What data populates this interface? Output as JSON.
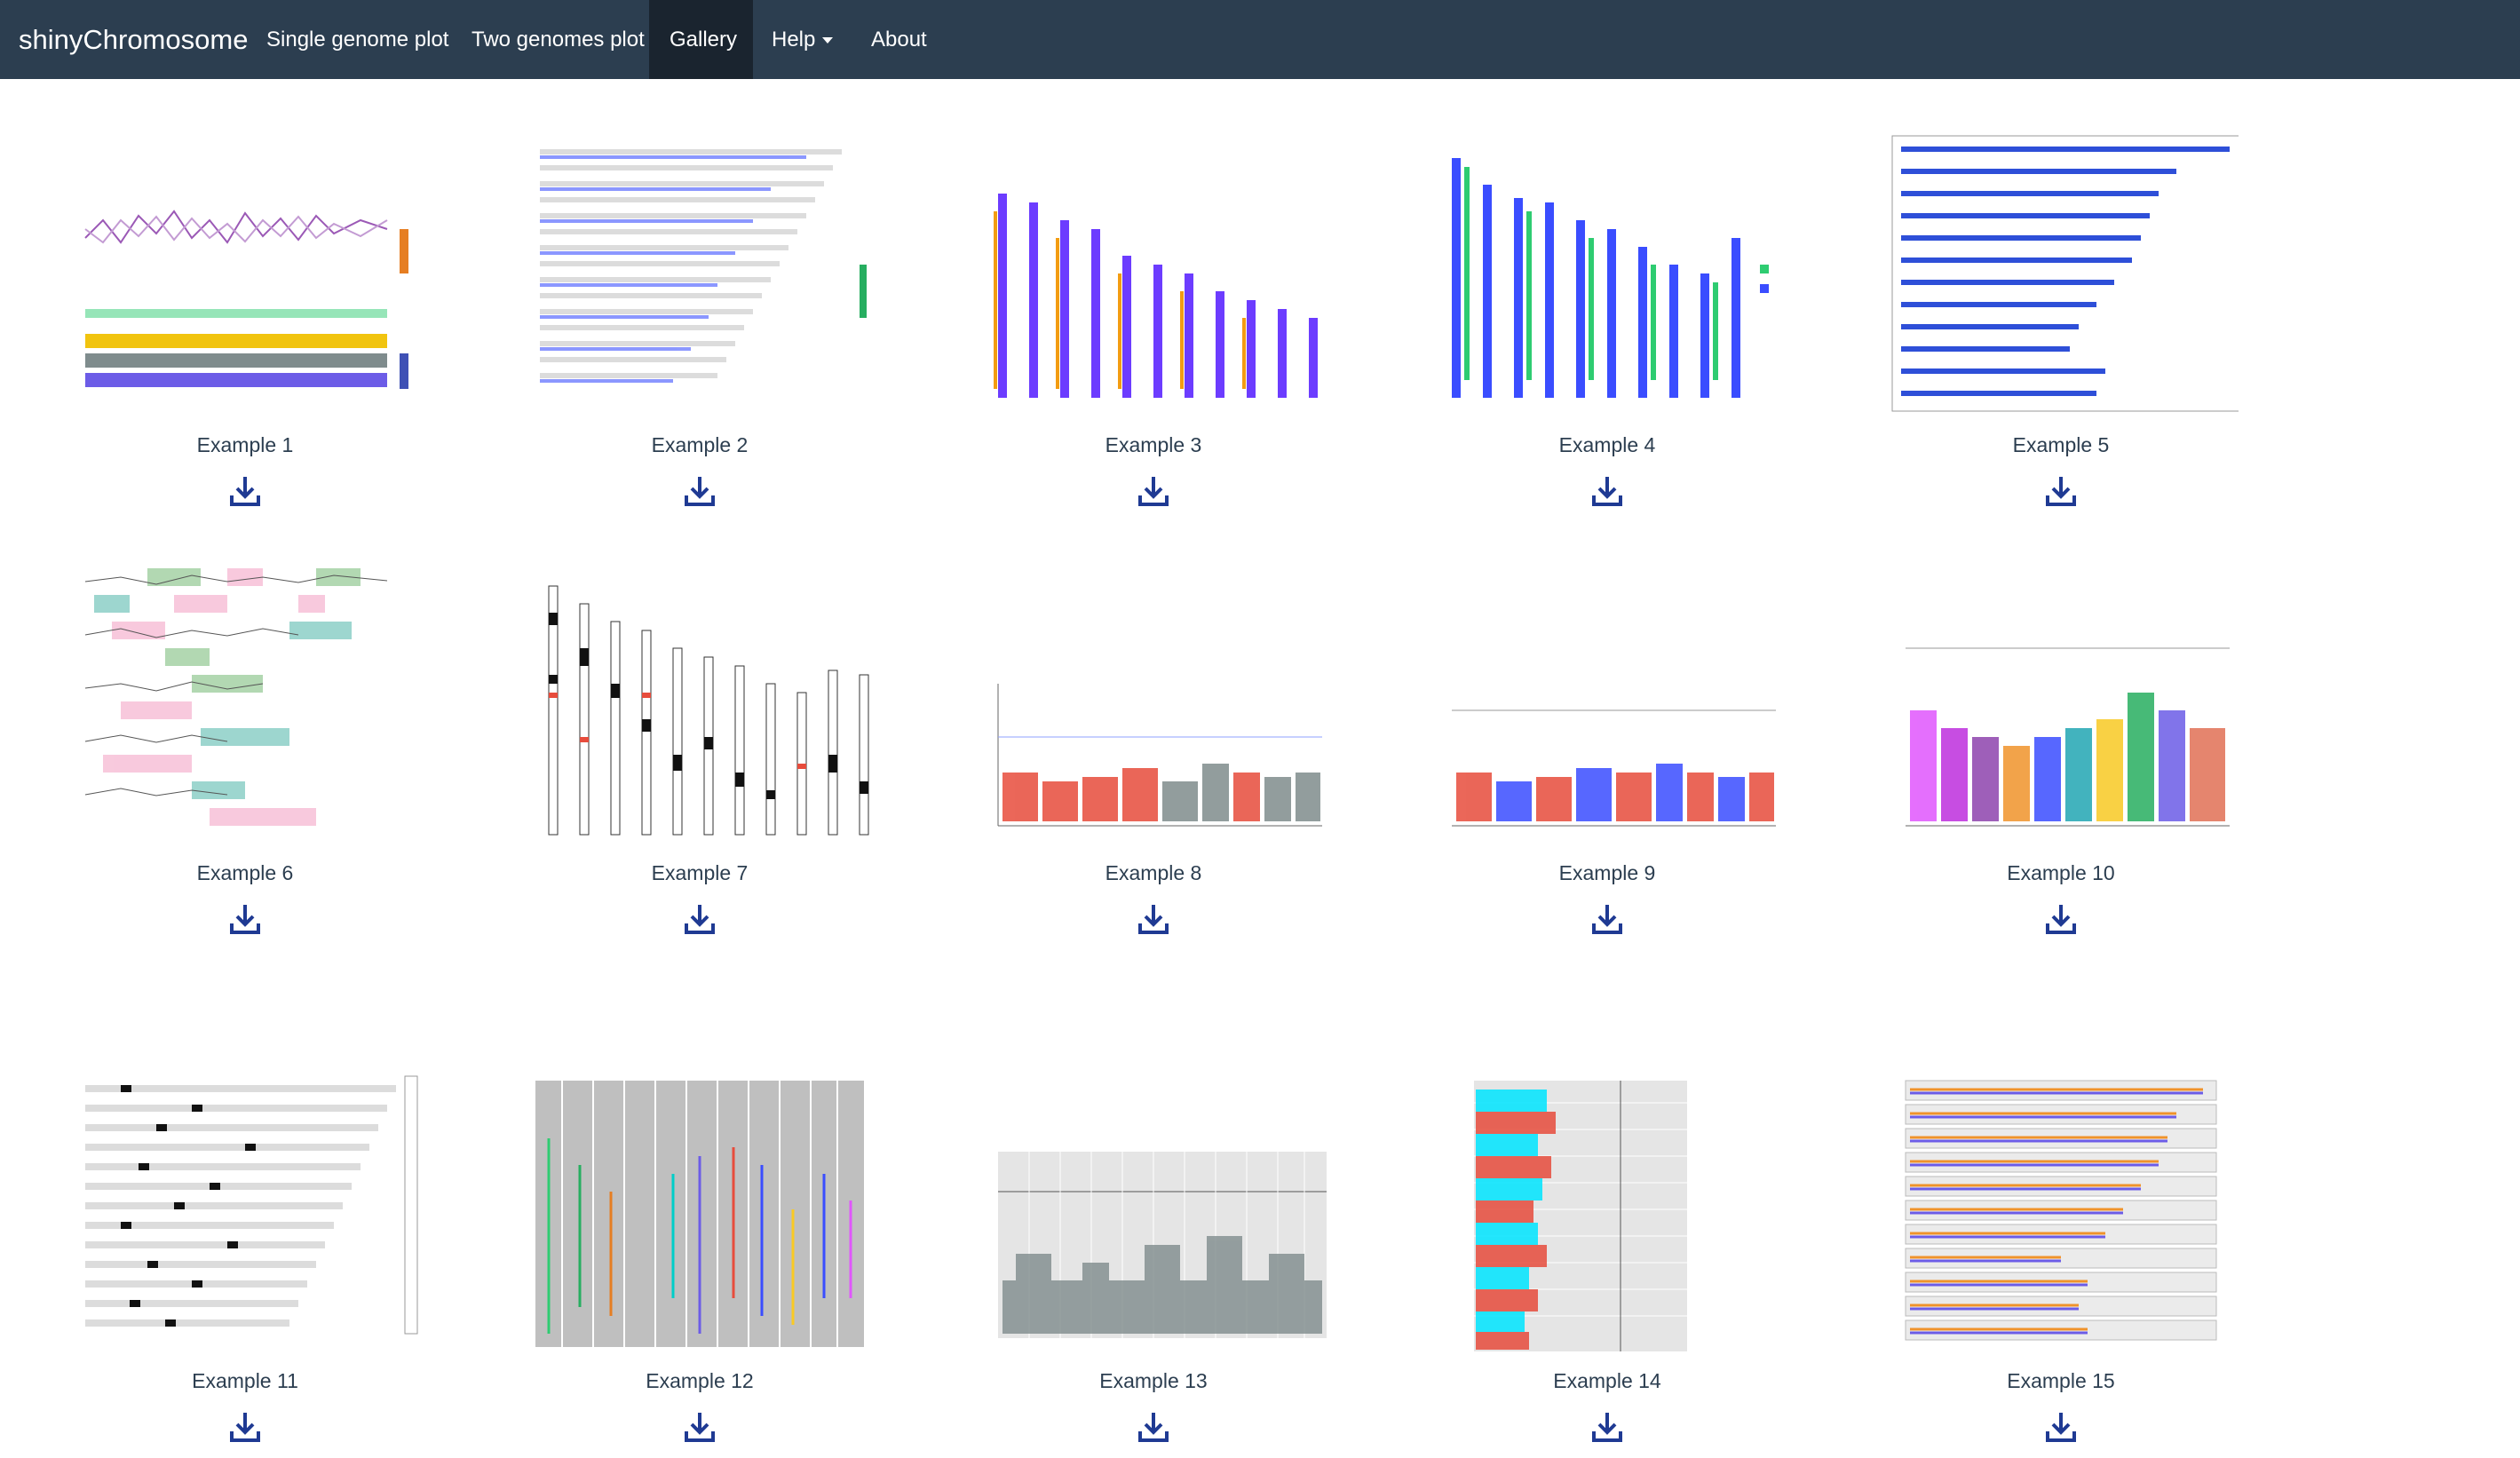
{
  "navbar": {
    "brand": "shinyChromosome",
    "items": [
      {
        "label": "Single genome plot"
      },
      {
        "label": "Two genomes plot"
      },
      {
        "label": "Gallery"
      },
      {
        "label": "Help"
      },
      {
        "label": "About"
      }
    ]
  },
  "gallery": {
    "items": [
      {
        "caption": "Example 1"
      },
      {
        "caption": "Example 2"
      },
      {
        "caption": "Example 3"
      },
      {
        "caption": "Example 4"
      },
      {
        "caption": "Example 5"
      },
      {
        "caption": "Example 6"
      },
      {
        "caption": "Example 7"
      },
      {
        "caption": "Example 8"
      },
      {
        "caption": "Example 9"
      },
      {
        "caption": "Example 10"
      },
      {
        "caption": "Example 11"
      },
      {
        "caption": "Example 12"
      },
      {
        "caption": "Example 13"
      },
      {
        "caption": "Example 14"
      },
      {
        "caption": "Example 15"
      }
    ],
    "download_icon": "download-icon"
  },
  "colors": {
    "navbar": "#2c3e50",
    "navbar_active": "#1a242f",
    "caption": "#2c3e50",
    "download_icon": "#1f3a93"
  }
}
